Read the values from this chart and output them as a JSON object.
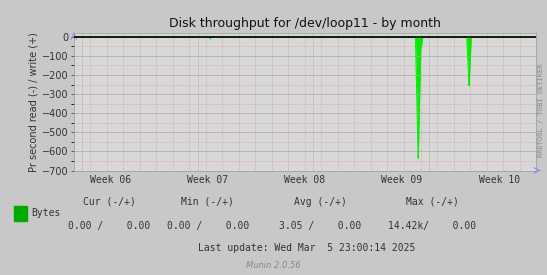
{
  "title": "Disk throughput for /dev/loop11 - by month",
  "ylabel": "Pr second read (-) / write (+)",
  "xlabel_ticks": [
    "Week 06",
    "Week 07",
    "Week 08",
    "Week 09",
    "Week 10"
  ],
  "ylim": [
    -700,
    20
  ],
  "yticks": [
    0,
    -100,
    -200,
    -300,
    -400,
    -500,
    -600,
    -700
  ],
  "bg_color": "#c8c8c8",
  "plot_bg_color": "#d8d8d8",
  "grid_color_major": "#bbbbbb",
  "grid_color_minor": "#e87878",
  "line_color": "#00ee00",
  "border_color": "#aaaaaa",
  "title_color": "#333333",
  "legend_label": "Bytes",
  "legend_color": "#00aa00",
  "footer_cur_label": "Cur (-/+)",
  "footer_cur_val": "0.00 /    0.00",
  "footer_min_label": "Min (-/+)",
  "footer_min_val": "0.00 /    0.00",
  "footer_avg_label": "Avg (-/+)",
  "footer_avg_val": "3.05 /    0.00",
  "footer_max_label": "Max (-/+)",
  "footer_max_val": "14.42k/    0.00",
  "footer_lastupdate": "Last update: Wed Mar  5 23:00:14 2025",
  "munin_version": "Munin 2.0.56",
  "rrdtool_label": "RRDTOOL / TOBI OETIKER"
}
